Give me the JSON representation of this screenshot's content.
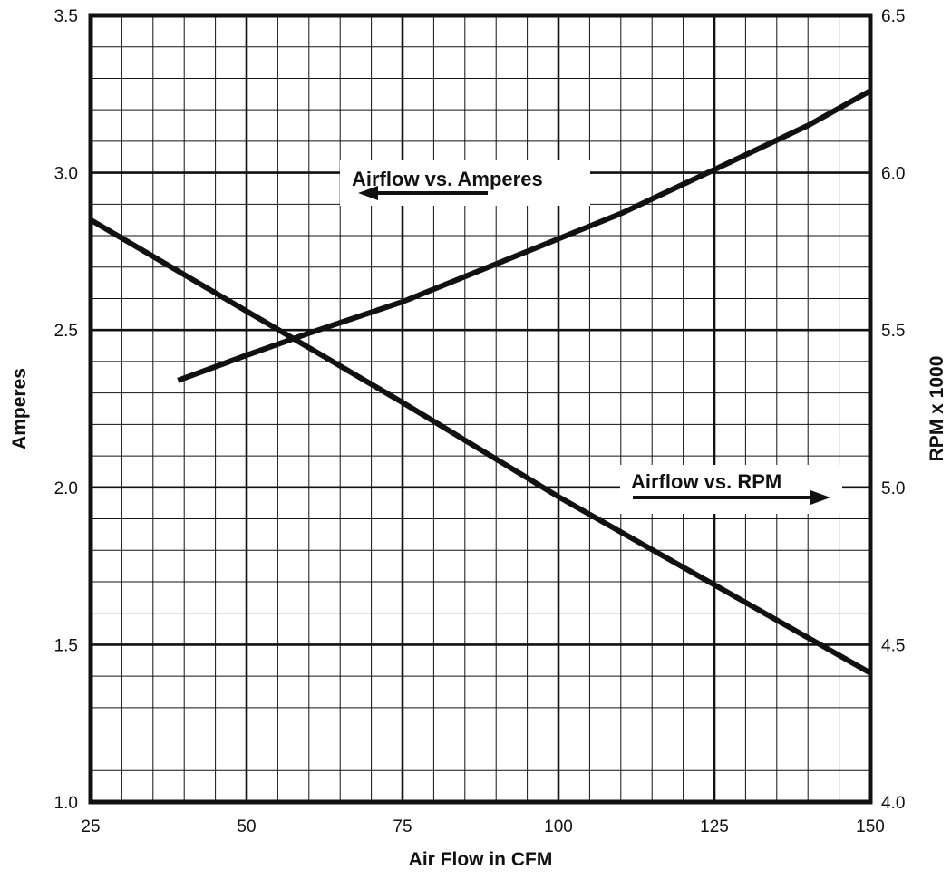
{
  "chart_data": {
    "type": "line",
    "xlabel": "Air Flow in CFM",
    "ylabel_left": "Amperes",
    "ylabel_right": "RPM x 1000",
    "xlim": [
      25,
      150
    ],
    "ylim_left": [
      1.0,
      3.5
    ],
    "ylim_right": [
      4.0,
      6.5
    ],
    "x_ticks": [
      "25",
      "50",
      "75",
      "100",
      "125",
      "150"
    ],
    "y_left_ticks": [
      "1.0",
      "1.5",
      "2.0",
      "2.5",
      "3.0",
      "3.5"
    ],
    "y_right_ticks": [
      "4.0",
      "4.5",
      "5.0",
      "5.5",
      "6.0",
      "6.5"
    ],
    "grid": true,
    "line_color": "#111111",
    "series": [
      {
        "name": "Airflow vs. Amperes",
        "axis": "left",
        "arrow": "left",
        "x": [
          39,
          50,
          60,
          75,
          90,
          100,
          110,
          125,
          140,
          150
        ],
        "y": [
          2.34,
          2.42,
          2.49,
          2.59,
          2.71,
          2.79,
          2.87,
          3.01,
          3.15,
          3.26
        ]
      },
      {
        "name": "Airflow vs. RPM",
        "axis": "right",
        "arrow": "right",
        "x": [
          25,
          50,
          75,
          100,
          125,
          150
        ],
        "y": [
          5.85,
          5.56,
          5.27,
          4.97,
          4.69,
          4.41
        ]
      }
    ]
  }
}
